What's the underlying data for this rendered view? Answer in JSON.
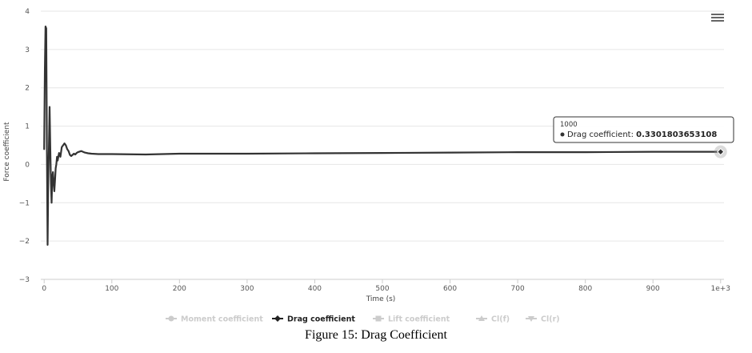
{
  "chart_data": {
    "type": "line",
    "xlabel": "Time (s)",
    "ylabel": "Force coefficient",
    "xlim": [
      -5,
      1005
    ],
    "ylim": [
      -3,
      4
    ],
    "x_ticks": [
      0,
      100,
      200,
      300,
      400,
      500,
      600,
      700,
      800,
      900,
      1000
    ],
    "x_tick_labels": [
      "0",
      "100",
      "200",
      "300",
      "400",
      "500",
      "600",
      "700",
      "800",
      "900",
      "1e+3"
    ],
    "y_ticks": [
      4,
      3,
      2,
      1,
      0,
      -1,
      -2,
      -3
    ],
    "y_tick_labels": [
      "4",
      "3",
      "2",
      "1",
      "0",
      "−1",
      "−2",
      "−3"
    ],
    "grid": "horizontal",
    "legend_position": "bottom",
    "series": [
      {
        "name": "Drag coefficient",
        "visible": true,
        "color": "#333333",
        "x": [
          0,
          1,
          2,
          3,
          4,
          5,
          6,
          7,
          8,
          9,
          10,
          11,
          12,
          13,
          14,
          15,
          16,
          17,
          18,
          19,
          20,
          22,
          24,
          26,
          28,
          30,
          32,
          34,
          36,
          38,
          40,
          42,
          44,
          46,
          48,
          50,
          55,
          60,
          65,
          70,
          80,
          100,
          150,
          200,
          300,
          400,
          500,
          600,
          700,
          800,
          900,
          1000
        ],
        "y": [
          0.4,
          2.5,
          3.6,
          3.55,
          0.5,
          -2.1,
          -0.5,
          0.4,
          1.5,
          0.5,
          -0.5,
          -1.0,
          -0.3,
          -0.2,
          -0.5,
          -0.7,
          -0.4,
          -0.1,
          0.0,
          0.2,
          0.1,
          0.3,
          0.2,
          0.45,
          0.5,
          0.55,
          0.5,
          0.4,
          0.35,
          0.25,
          0.22,
          0.25,
          0.28,
          0.26,
          0.3,
          0.32,
          0.35,
          0.31,
          0.29,
          0.28,
          0.27,
          0.27,
          0.26,
          0.28,
          0.28,
          0.29,
          0.3,
          0.31,
          0.32,
          0.32,
          0.33,
          0.33
        ]
      }
    ],
    "legend": [
      {
        "name": "Moment coefficient",
        "marker": "circle",
        "active": false
      },
      {
        "name": "Drag coefficient",
        "marker": "diamond",
        "active": true
      },
      {
        "name": "Lift coefficient",
        "marker": "square",
        "active": false
      },
      {
        "name": "Cl(f)",
        "marker": "triangle-up",
        "active": false
      },
      {
        "name": "Cl(r)",
        "marker": "triangle-down",
        "active": false
      }
    ],
    "tooltip": {
      "x_label": "1000",
      "series_label": "Drag coefficient: ",
      "value": "0.3301803653108",
      "point": {
        "x": 1000,
        "y": 0.33
      }
    }
  },
  "menu_icon": "hamburger-menu-icon",
  "colors": {
    "line": "#333333",
    "legend_active": "#222222",
    "legend_inactive": "#cccccc",
    "grid": "#e6e6e6"
  },
  "caption": "Figure 15: Drag Coefficient"
}
